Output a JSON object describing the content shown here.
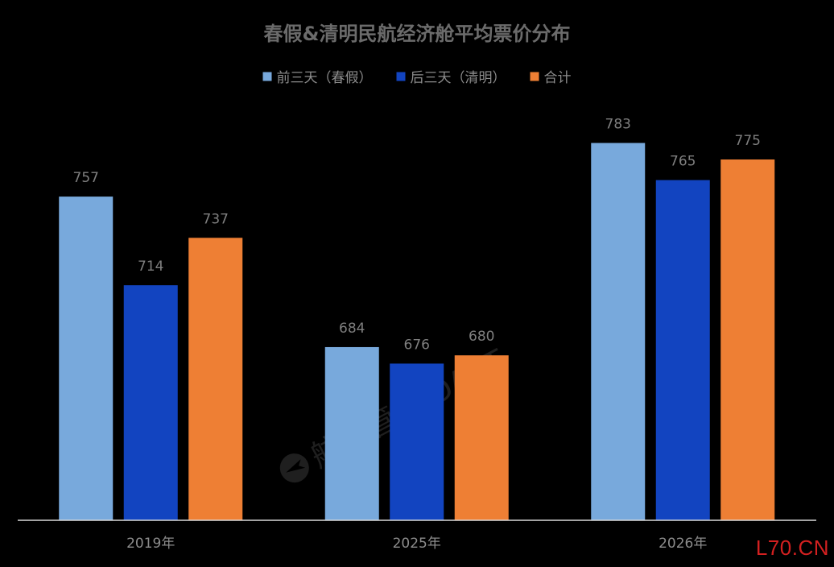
{
  "chart_data": {
    "type": "bar",
    "title": "春假&清明民航经济舱平均票价分布",
    "categories": [
      "2019年",
      "2025年",
      "2026年"
    ],
    "series": [
      {
        "name": "前三天（春假）",
        "color": "#78a9dc",
        "values": [
          757,
          684,
          783
        ]
      },
      {
        "name": "后三天（清明）",
        "color": "#1244c0",
        "values": [
          714,
          676,
          765
        ]
      },
      {
        "name": "合计",
        "color": "#ee7f34",
        "values": [
          737,
          680,
          775
        ]
      }
    ],
    "ylim": [
      600,
      800
    ],
    "grid": false,
    "legend": "top-center",
    "data_labels": true
  },
  "watermark": {
    "text": "航班管家 DAST",
    "icon": "plane-logo-icon"
  },
  "corner_mark": "L70.CN"
}
